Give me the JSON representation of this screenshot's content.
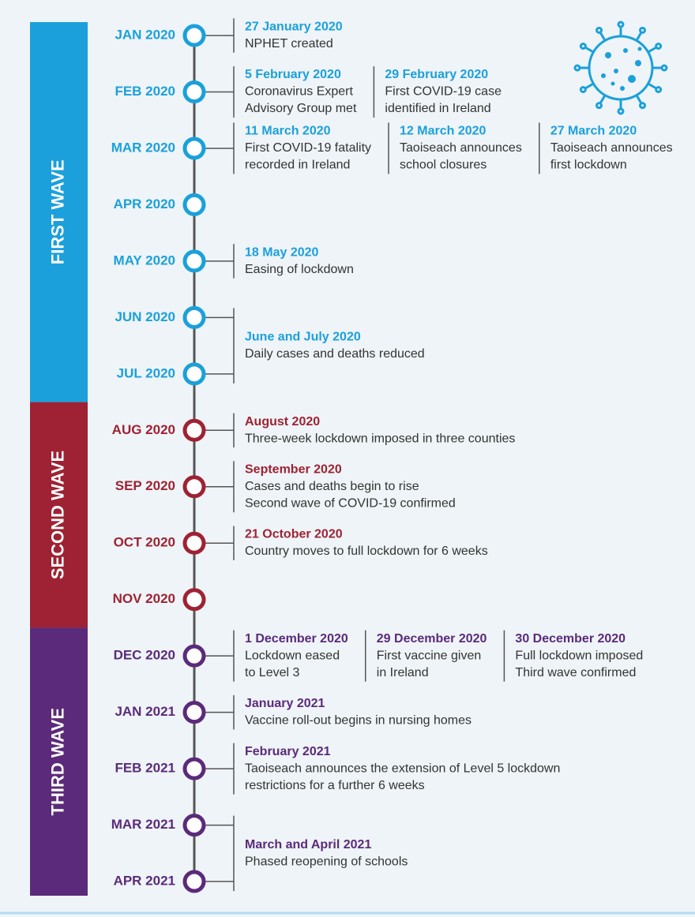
{
  "waves": [
    {
      "label": "FIRST WAVE",
      "color": "#1ba0db",
      "rows": [
        {
          "months": [
            "JAN 2020"
          ],
          "events": [
            {
              "title": "27 January 2020",
              "lines": [
                "NPHET created"
              ]
            }
          ]
        },
        {
          "months": [
            "FEB 2020"
          ],
          "events": [
            {
              "title": "5 February 2020",
              "lines": [
                "Coronavirus Expert",
                "Advisory Group met"
              ]
            },
            {
              "title": "29 February 2020",
              "lines": [
                "First COVID-19 case",
                "identified in Ireland"
              ]
            }
          ]
        },
        {
          "months": [
            "MAR 2020"
          ],
          "events": [
            {
              "title": "11 March 2020",
              "lines": [
                "First COVID-19 fatality",
                "recorded in Ireland"
              ]
            },
            {
              "title": "12 March 2020",
              "lines": [
                "Taoiseach announces",
                "school closures"
              ]
            },
            {
              "title": "27 March 2020",
              "lines": [
                "Taoiseach announces",
                "first lockdown"
              ]
            }
          ]
        },
        {
          "months": [
            "APR 2020"
          ],
          "events": []
        },
        {
          "months": [
            "MAY 2020"
          ],
          "events": [
            {
              "title": "18 May 2020",
              "lines": [
                "Easing of lockdown"
              ]
            }
          ]
        },
        {
          "months": [
            "JUN 2020",
            "JUL 2020"
          ],
          "events": [
            {
              "title": "June and July 2020",
              "lines": [
                "Daily cases and deaths reduced"
              ]
            }
          ]
        }
      ]
    },
    {
      "label": "SECOND WAVE",
      "color": "#9e2233",
      "rows": [
        {
          "months": [
            "AUG 2020"
          ],
          "events": [
            {
              "title": "August 2020",
              "lines": [
                "Three-week lockdown imposed in three counties"
              ]
            }
          ]
        },
        {
          "months": [
            "SEP 2020"
          ],
          "events": [
            {
              "title": "September 2020",
              "lines": [
                "Cases and deaths begin to rise",
                "Second wave of COVID-19 confirmed"
              ]
            }
          ]
        },
        {
          "months": [
            "OCT 2020"
          ],
          "events": [
            {
              "title": "21 October 2020",
              "lines": [
                "Country moves to full lockdown for 6 weeks"
              ]
            }
          ]
        },
        {
          "months": [
            "NOV 2020"
          ],
          "events": []
        }
      ]
    },
    {
      "label": "THIRD WAVE",
      "color": "#5b2a7a",
      "rows": [
        {
          "months": [
            "DEC 2020"
          ],
          "events": [
            {
              "title": "1 December 2020",
              "lines": [
                "Lockdown eased",
                "to Level 3"
              ]
            },
            {
              "title": "29 December 2020",
              "lines": [
                "First vaccine given",
                "in Ireland"
              ]
            },
            {
              "title": "30 December 2020",
              "lines": [
                "Full lockdown imposed",
                "Third wave confirmed"
              ]
            }
          ]
        },
        {
          "months": [
            "JAN 2021"
          ],
          "events": [
            {
              "title": "January 2021",
              "lines": [
                "Vaccine roll-out begins in nursing homes"
              ]
            }
          ]
        },
        {
          "months": [
            "FEB 2021"
          ],
          "events": [
            {
              "title": "February 2021",
              "lines": [
                "Taoiseach announces the extension of Level 5 lockdown",
                "restrictions for a further 6 weeks"
              ]
            }
          ]
        },
        {
          "months": [
            "MAR 2021",
            "APR 2021"
          ],
          "events": [
            {
              "title": "March and April 2021",
              "lines": [
                "Phased reopening of schools"
              ]
            }
          ]
        }
      ]
    }
  ]
}
